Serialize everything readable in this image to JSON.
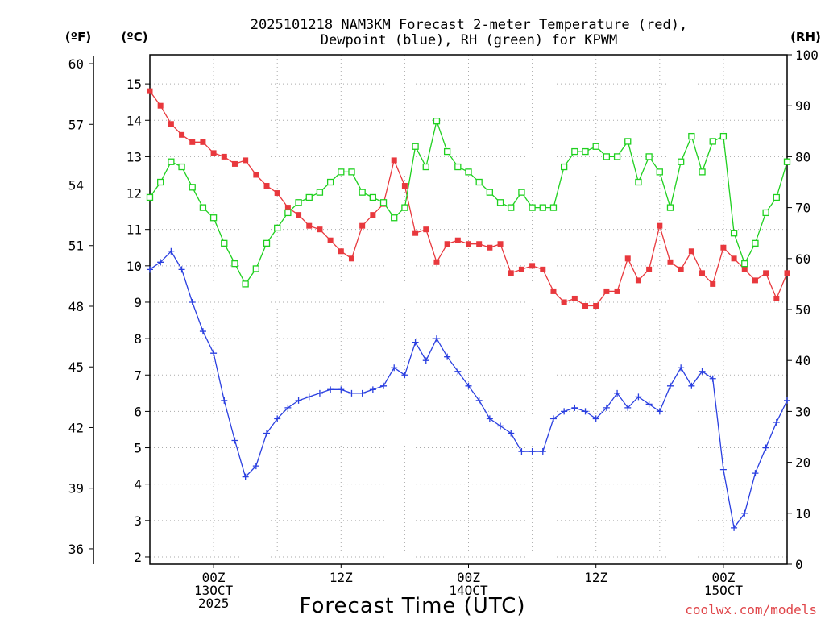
{
  "chart_data": {
    "type": "line",
    "title_lines": [
      "2025101218 NAM3KM Forecast 2-meter Temperature (red),",
      "Dewpoint (blue), RH (green) for KPWM"
    ],
    "xlabel": "Forecast Time (UTC)",
    "credit": "coolwx.com/models",
    "units": {
      "fahrenheit": "(ºF)",
      "celsius": "(ºC)",
      "rh": "(RH)"
    },
    "x_unit": "hours from 2025-10-12 18Z",
    "x_range": [
      0,
      60
    ],
    "y_range_c": [
      1.8,
      15.8
    ],
    "rh_range": [
      0,
      100
    ],
    "celsius_ticks": [
      2,
      3,
      4,
      5,
      6,
      7,
      8,
      9,
      10,
      11,
      12,
      13,
      14,
      15
    ],
    "fahrenheit_ticks": [
      36,
      39,
      42,
      45,
      48,
      51,
      54,
      57,
      60
    ],
    "rh_ticks": [
      0,
      10,
      20,
      30,
      40,
      50,
      60,
      70,
      80,
      90,
      100
    ],
    "x_ticks": [
      {
        "hour": 6,
        "lines": [
          "00Z",
          "13OCT",
          "2025"
        ]
      },
      {
        "hour": 18,
        "lines": [
          "12Z"
        ]
      },
      {
        "hour": 30,
        "lines": [
          "00Z",
          "14OCT"
        ]
      },
      {
        "hour": 42,
        "lines": [
          "12Z"
        ]
      },
      {
        "hour": 54,
        "lines": [
          "00Z",
          "15OCT"
        ]
      }
    ],
    "series": [
      {
        "name": "2-meter Temperature",
        "axis": "celsius",
        "color": "#e8383d",
        "marker": "filled-square",
        "x": [
          0,
          1,
          2,
          3,
          4,
          5,
          6,
          7,
          8,
          9,
          10,
          11,
          12,
          13,
          14,
          15,
          16,
          17,
          18,
          19,
          20,
          21,
          22,
          23,
          24,
          25,
          26,
          27,
          28,
          29,
          30,
          31,
          32,
          33,
          34,
          35,
          36,
          37,
          38,
          39,
          40,
          41,
          42,
          43,
          44,
          45,
          46,
          47,
          48,
          49,
          50,
          51,
          52,
          53,
          54,
          55,
          56,
          57,
          58,
          59,
          60
        ],
        "values": [
          14.8,
          14.4,
          13.9,
          13.6,
          13.4,
          13.4,
          13.1,
          13.0,
          12.8,
          12.9,
          12.5,
          12.2,
          12.0,
          11.6,
          11.4,
          11.1,
          11.0,
          10.7,
          10.4,
          10.2,
          11.1,
          11.4,
          11.7,
          12.9,
          12.2,
          10.9,
          11.0,
          10.1,
          10.6,
          10.7,
          10.6,
          10.6,
          10.5,
          10.6,
          9.8,
          9.9,
          10.0,
          9.9,
          9.3,
          9.0,
          9.1,
          8.9,
          8.9,
          9.3,
          9.3,
          10.2,
          9.6,
          9.9,
          11.1,
          10.1,
          9.9,
          10.4,
          9.8,
          9.5,
          10.5,
          10.2,
          9.9,
          9.6,
          9.8,
          9.1,
          9.8
        ]
      },
      {
        "name": "Dewpoint",
        "axis": "celsius",
        "color": "#2a3fe0",
        "marker": "plus",
        "x": [
          0,
          1,
          2,
          3,
          4,
          5,
          6,
          7,
          8,
          9,
          10,
          11,
          12,
          13,
          14,
          15,
          16,
          17,
          18,
          19,
          20,
          21,
          22,
          23,
          24,
          25,
          26,
          27,
          28,
          29,
          30,
          31,
          32,
          33,
          34,
          35,
          36,
          37,
          38,
          39,
          40,
          41,
          42,
          43,
          44,
          45,
          46,
          47,
          48,
          49,
          50,
          51,
          52,
          53,
          54,
          55,
          56,
          57,
          58,
          59,
          60
        ],
        "values": [
          9.9,
          10.1,
          10.4,
          9.9,
          9.0,
          8.2,
          7.6,
          6.3,
          5.2,
          4.2,
          4.5,
          5.4,
          5.8,
          6.1,
          6.3,
          6.4,
          6.5,
          6.6,
          6.6,
          6.5,
          6.5,
          6.6,
          6.7,
          7.2,
          7.0,
          7.9,
          7.4,
          8.0,
          7.5,
          7.1,
          6.7,
          6.3,
          5.8,
          5.6,
          5.4,
          4.9,
          4.9,
          4.9,
          5.8,
          6.0,
          6.1,
          6.0,
          5.8,
          6.1,
          6.5,
          6.1,
          6.4,
          6.2,
          6.0,
          6.7,
          7.2,
          6.7,
          7.1,
          6.9,
          4.4,
          2.8,
          3.2,
          4.3,
          5.0,
          5.7,
          6.3
        ]
      },
      {
        "name": "RH",
        "axis": "rh",
        "color": "#1fd01f",
        "marker": "open-square",
        "x": [
          0,
          1,
          2,
          3,
          4,
          5,
          6,
          7,
          8,
          9,
          10,
          11,
          12,
          13,
          14,
          15,
          16,
          17,
          18,
          19,
          20,
          21,
          22,
          23,
          24,
          25,
          26,
          27,
          28,
          29,
          30,
          31,
          32,
          33,
          34,
          35,
          36,
          37,
          38,
          39,
          40,
          41,
          42,
          43,
          44,
          45,
          46,
          47,
          48,
          49,
          50,
          51,
          52,
          53,
          54,
          55,
          56,
          57,
          58,
          59,
          60
        ],
        "values": [
          72,
          75,
          79,
          78,
          74,
          70,
          68,
          63,
          59,
          55,
          58,
          63,
          66,
          69,
          71,
          72,
          73,
          75,
          77,
          77,
          73,
          72,
          71,
          68,
          70,
          82,
          78,
          87,
          81,
          78,
          77,
          75,
          73,
          71,
          70,
          73,
          70,
          70,
          70,
          78,
          81,
          81,
          82,
          80,
          80,
          83,
          75,
          80,
          77,
          70,
          79,
          84,
          77,
          83,
          84,
          65,
          59,
          63,
          69,
          72,
          79
        ]
      }
    ]
  }
}
